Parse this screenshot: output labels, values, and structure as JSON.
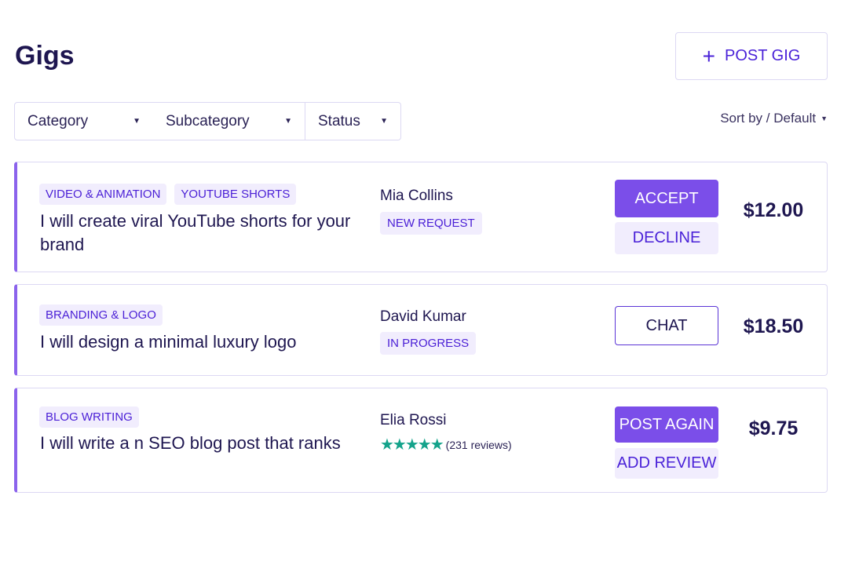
{
  "header": {
    "title": "Gigs",
    "post_button": "POST GIG",
    "post_icon": "plus-icon"
  },
  "filters": [
    {
      "label": "Category"
    },
    {
      "label": "Subcategory"
    },
    {
      "label": "Status"
    }
  ],
  "sort": {
    "label": "Sort by / Default"
  },
  "colors": {
    "accent": "#7b4ee9",
    "tag_bg": "#f1edfd",
    "tag_text": "#4a1fd6",
    "text": "#1e1650",
    "stars": "#14a38b"
  },
  "gigs": [
    {
      "tags": [
        "VIDEO & ANIMATION",
        "YOUTUBE SHORTS"
      ],
      "title": "I will create viral YouTube shorts  for your brand",
      "buyer": "Mia Collins",
      "status": "NEW REQUEST",
      "actions": [
        "ACCEPT",
        "DECLINE"
      ],
      "price": "$12.00"
    },
    {
      "tags": [
        "BRANDING & LOGO"
      ],
      "title": "I will design a minimal luxury logo",
      "buyer": "David Kumar",
      "status": "IN PROGRESS",
      "actions": [
        "CHAT"
      ],
      "price": "$18.50"
    },
    {
      "tags": [
        "BLOG WRITING"
      ],
      "title": "I will write a n SEO blog post that ranks",
      "buyer": "Elia Rossi",
      "rating": 5,
      "stars": "★★★★★",
      "reviews": "(231 reviews)",
      "actions": [
        "POST AGAIN",
        "ADD REVIEW"
      ],
      "price": "$9.75"
    }
  ]
}
